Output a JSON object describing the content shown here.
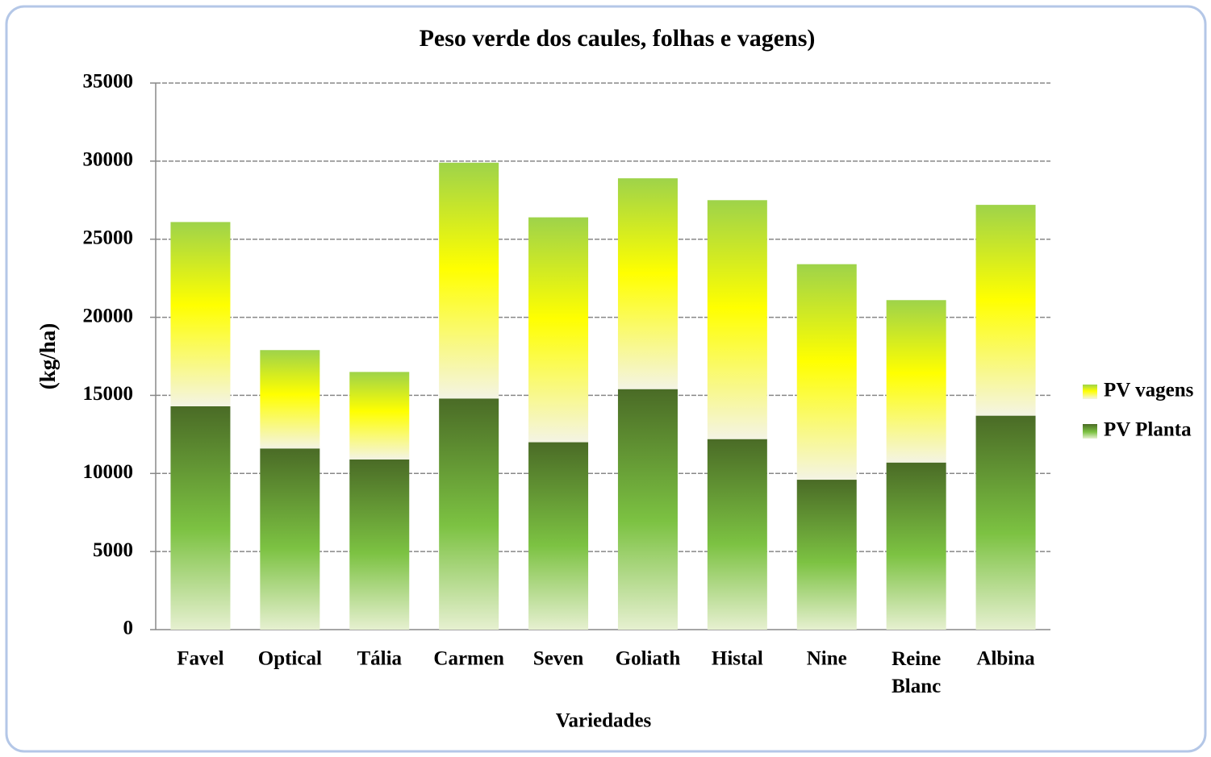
{
  "chart_data": {
    "type": "stacked_bar",
    "title": "Peso verde dos caules, folhas e vagens)",
    "x_label": "Variedades",
    "y_label": "(kg/ha)",
    "categories": [
      "Favel",
      "Optical",
      "Tália",
      "Carmen",
      "Seven",
      "Goliath",
      "Histal",
      "Nine",
      "Reine Blanc",
      "Albina"
    ],
    "series": [
      {
        "name": "PV Planta",
        "color": "#7cc242",
        "values": [
          14300,
          11600,
          10900,
          14800,
          12000,
          15400,
          12200,
          9600,
          10700,
          13700
        ]
      },
      {
        "name": "PV vagens",
        "color": "#ffff00",
        "values": [
          11800,
          6300,
          5600,
          15100,
          14400,
          13500,
          15300,
          13800,
          10400,
          13500
        ]
      }
    ],
    "ylim": [
      0,
      35000
    ],
    "yticks": [
      0,
      5000,
      10000,
      15000,
      20000,
      25000,
      30000,
      35000
    ],
    "grid": true,
    "legend": "right"
  }
}
